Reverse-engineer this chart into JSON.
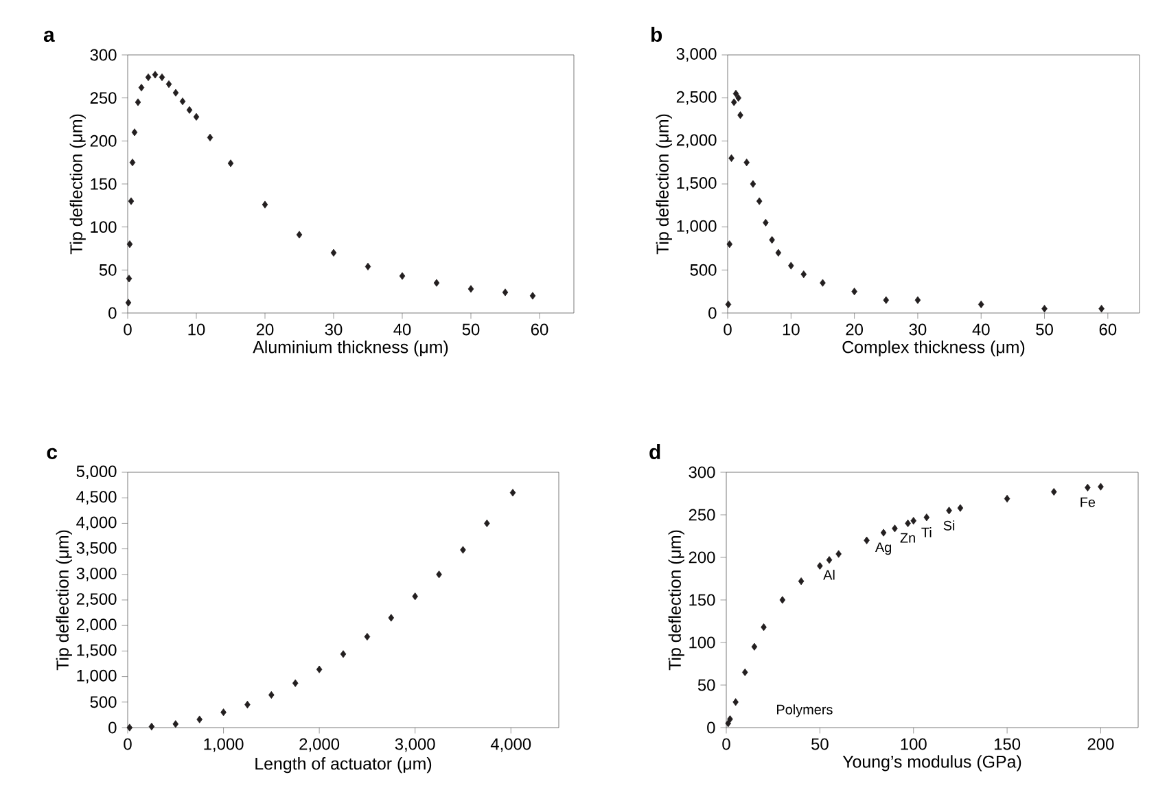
{
  "chart_data": [
    {
      "type": "scatter",
      "title": "a",
      "xlabel": "Aluminium thickness (μm)",
      "ylabel": "Tip deflection (μm)",
      "marker": "diamond",
      "xlim": [
        0,
        65
      ],
      "xticks": [
        0,
        10,
        20,
        30,
        40,
        50,
        60
      ],
      "ylim": [
        0,
        300
      ],
      "yticks": [
        0,
        50,
        100,
        150,
        200,
        250,
        300
      ],
      "series": [
        {
          "color": "#231f20",
          "x": [
            0.1,
            0.2,
            0.3,
            0.5,
            0.7,
            1,
            1.5,
            2,
            3,
            4,
            5,
            6,
            7,
            8,
            9,
            10,
            12,
            15,
            20,
            25,
            30,
            35,
            40,
            45,
            50,
            55,
            59
          ],
          "values": [
            12,
            40,
            80,
            130,
            175,
            210,
            245,
            262,
            274,
            277,
            274,
            266,
            256,
            246,
            236,
            228,
            204,
            174,
            126,
            91,
            70,
            54,
            43,
            35,
            28,
            24,
            20
          ]
        }
      ]
    },
    {
      "type": "scatter",
      "title": "b",
      "xlabel": "Complex thickness (μm)",
      "ylabel": "Tip deflection (μm)",
      "marker": "diamond",
      "xlim": [
        0,
        65
      ],
      "xticks": [
        0,
        10,
        20,
        30,
        40,
        50,
        60
      ],
      "ylim": [
        0,
        3000
      ],
      "yticks": [
        0,
        500,
        {
          "value": 1000,
          "label": "1,000"
        },
        {
          "value": 1500,
          "label": "1,500"
        },
        {
          "value": 2000,
          "label": "2,000"
        },
        {
          "value": 2500,
          "label": "2,500"
        },
        {
          "value": 3000,
          "label": "3,000"
        }
      ],
      "series": [
        {
          "color": "#231f20",
          "x": [
            0.1,
            0.3,
            0.6,
            1,
            1.3,
            1.7,
            2,
            3,
            4,
            5,
            6,
            7,
            8,
            10,
            12,
            15,
            20,
            25,
            30,
            40,
            50,
            59
          ],
          "values": [
            100,
            800,
            1800,
            2450,
            2550,
            2500,
            2300,
            1750,
            1500,
            1300,
            1050,
            850,
            700,
            550,
            450,
            350,
            250,
            150,
            150,
            100,
            50,
            50
          ]
        }
      ]
    },
    {
      "type": "scatter",
      "title": "c",
      "xlabel": "Length of actuator (μm)",
      "ylabel": "Tip deflection (μm)",
      "marker": "diamond",
      "xlim": [
        0,
        4500
      ],
      "xticks": [
        0,
        {
          "value": 1000,
          "label": "1,000"
        },
        {
          "value": 2000,
          "label": "2,000"
        },
        {
          "value": 3000,
          "label": "3,000"
        },
        {
          "value": 4000,
          "label": "4,000"
        }
      ],
      "ylim": [
        0,
        5000
      ],
      "yticks": [
        0,
        500,
        {
          "value": 1000,
          "label": "1,000"
        },
        {
          "value": 1500,
          "label": "1,500"
        },
        {
          "value": 2000,
          "label": "2,000"
        },
        {
          "value": 2500,
          "label": "2,500"
        },
        {
          "value": 3000,
          "label": "3,000"
        },
        {
          "value": 3500,
          "label": "3,500"
        },
        {
          "value": 4000,
          "label": "4,000"
        },
        {
          "value": 4500,
          "label": "4,500"
        },
        {
          "value": 5000,
          "label": "5,000"
        }
      ],
      "series": [
        {
          "color": "#231f20",
          "x": [
            20,
            250,
            500,
            750,
            1000,
            1250,
            1500,
            1750,
            2000,
            2250,
            2500,
            2750,
            3000,
            3250,
            3500,
            3750,
            4020
          ],
          "values": [
            0,
            20,
            70,
            160,
            300,
            450,
            640,
            870,
            1140,
            1440,
            1780,
            2150,
            2570,
            3000,
            3480,
            4000,
            4600
          ]
        }
      ]
    },
    {
      "type": "scatter",
      "title": "d",
      "xlabel": "Young’s modulus (GPa)",
      "ylabel": "Tip deflection (μm)",
      "marker": "diamond",
      "xlim": [
        0,
        220
      ],
      "xticks": [
        0,
        50,
        100,
        150,
        200
      ],
      "ylim": [
        0,
        300
      ],
      "yticks": [
        0,
        50,
        100,
        150,
        200,
        250,
        300
      ],
      "series": [
        {
          "color": "#231f20",
          "x": [
            1,
            2,
            5,
            10,
            15,
            20,
            30,
            40,
            50,
            55,
            60,
            75,
            84,
            90,
            97,
            100,
            107,
            119,
            125,
            150,
            175,
            193,
            200
          ],
          "values": [
            5,
            10,
            30,
            65,
            95,
            118,
            150,
            172,
            190,
            197,
            204,
            220,
            229,
            234,
            240,
            243,
            247,
            255,
            258,
            269,
            277,
            282,
            283
          ]
        }
      ],
      "annotations": [
        "Polymers",
        {
          "text": "Al",
          "x": 55,
          "y": 197
        },
        {
          "text": "Ag",
          "x": 84,
          "y": 229
        },
        {
          "text": "Zn",
          "x": 97,
          "y": 240
        },
        {
          "text": "Ti",
          "x": 107,
          "y": 247
        },
        {
          "text": "Si",
          "x": 119,
          "y": 255
        },
        {
          "text": "Fe",
          "x": 193,
          "y": 282
        }
      ]
    }
  ]
}
